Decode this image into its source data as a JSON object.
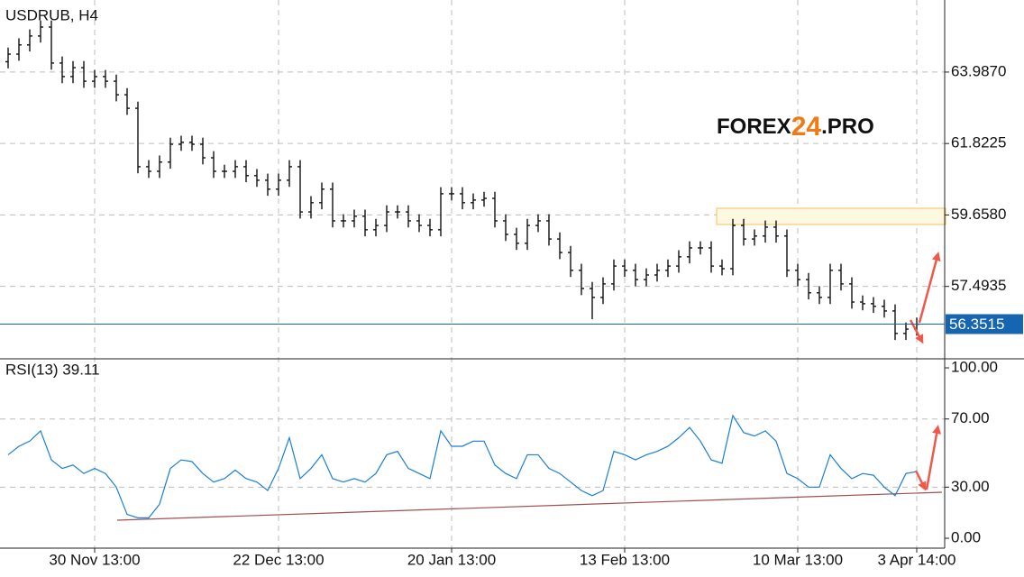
{
  "chart_data": [
    {
      "type": "ohlc",
      "title": "USDRUB, H4",
      "watermark": [
        "FOREX",
        "24",
        ".PRO"
      ],
      "color": "#111111",
      "categories": [
        null,
        null,
        null,
        null,
        null,
        null,
        null,
        null,
        "30 Nov 13:00",
        null,
        null,
        null,
        null,
        null,
        null,
        null,
        null,
        null,
        null,
        null,
        null,
        null,
        null,
        null,
        null,
        "22 Dec 13:00",
        null,
        null,
        null,
        null,
        null,
        null,
        null,
        null,
        null,
        null,
        null,
        null,
        null,
        null,
        null,
        "20 Jan 13:00",
        null,
        null,
        null,
        null,
        null,
        null,
        null,
        null,
        null,
        null,
        null,
        null,
        null,
        null,
        null,
        "13 Feb 13:00",
        null,
        null,
        null,
        null,
        null,
        null,
        null,
        null,
        null,
        null,
        null,
        null,
        null,
        null,
        null,
        "10 Mar 13:00",
        null,
        null,
        null,
        null,
        null,
        null,
        null,
        null,
        null,
        null,
        "3 Apr 14:00"
      ],
      "open": [
        64.3,
        64.53,
        64.81,
        65.08,
        65.35,
        64.26,
        63.85,
        64.12,
        63.71,
        63.85,
        63.71,
        63.3,
        62.89,
        61.12,
        60.98,
        61.26,
        61.8,
        61.86,
        61.8,
        61.39,
        60.98,
        60.98,
        61.12,
        60.85,
        60.71,
        60.44,
        60.71,
        61.12,
        59.75,
        60.03,
        60.44,
        59.48,
        59.48,
        59.62,
        59.21,
        59.34,
        59.75,
        59.75,
        59.48,
        59.34,
        59.21,
        60.3,
        60.3,
        60.03,
        60.11,
        60.16,
        59.48,
        59.07,
        58.8,
        59.34,
        59.48,
        58.93,
        58.52,
        57.98,
        57.43,
        57.16,
        57.57,
        58.11,
        57.98,
        57.7,
        57.84,
        57.98,
        58.11,
        58.39,
        58.66,
        58.66,
        58.11,
        58.03,
        59.34,
        58.93,
        59.02,
        59.29,
        59.02,
        57.98,
        57.7,
        57.3,
        57.16,
        57.98,
        57.57,
        57.02,
        56.97,
        56.89,
        56.75,
        56.07,
        56.2
      ],
      "high": [
        64.73,
        65.01,
        65.28,
        65.55,
        65.55,
        64.46,
        64.32,
        64.32,
        64.05,
        64.05,
        63.91,
        63.5,
        63.09,
        61.32,
        61.46,
        62.0,
        62.06,
        62.06,
        62.0,
        61.59,
        61.18,
        61.32,
        61.32,
        61.05,
        60.91,
        60.91,
        61.32,
        61.32,
        60.23,
        60.64,
        60.64,
        59.68,
        59.82,
        59.82,
        59.54,
        59.95,
        59.95,
        59.95,
        59.68,
        59.54,
        60.5,
        60.5,
        60.5,
        60.31,
        60.36,
        60.36,
        59.68,
        59.27,
        59.54,
        59.68,
        59.68,
        59.13,
        58.72,
        58.18,
        57.63,
        57.77,
        58.31,
        58.31,
        58.18,
        58.04,
        58.18,
        58.31,
        58.59,
        58.86,
        58.86,
        58.86,
        58.31,
        59.54,
        59.54,
        59.22,
        59.49,
        59.49,
        59.22,
        58.18,
        57.9,
        57.5,
        58.18,
        58.18,
        57.77,
        57.22,
        57.17,
        57.09,
        56.95,
        56.4,
        56.55
      ],
      "low": [
        64.1,
        64.33,
        64.61,
        64.88,
        64.06,
        63.65,
        63.65,
        63.51,
        63.51,
        63.51,
        63.1,
        62.69,
        60.92,
        60.78,
        60.78,
        61.06,
        61.6,
        61.6,
        61.19,
        60.78,
        60.78,
        60.78,
        60.65,
        60.51,
        60.24,
        60.24,
        60.51,
        59.55,
        59.55,
        59.83,
        59.28,
        59.28,
        59.28,
        59.01,
        59.01,
        59.14,
        59.55,
        59.28,
        59.14,
        59.01,
        59.01,
        60.1,
        59.83,
        59.83,
        59.91,
        59.28,
        58.87,
        58.6,
        58.6,
        59.14,
        58.73,
        58.32,
        57.78,
        57.23,
        56.5,
        56.96,
        57.37,
        57.78,
        57.5,
        57.5,
        57.64,
        57.78,
        57.91,
        58.19,
        58.46,
        57.91,
        57.83,
        57.83,
        58.73,
        58.73,
        58.82,
        58.82,
        57.78,
        57.5,
        57.1,
        56.96,
        56.96,
        57.37,
        56.82,
        56.77,
        56.69,
        56.55,
        55.87,
        55.87,
        56.0
      ],
      "close": [
        64.53,
        64.81,
        65.08,
        65.35,
        64.26,
        63.85,
        64.12,
        63.71,
        63.85,
        63.71,
        63.3,
        62.89,
        61.12,
        60.98,
        61.26,
        61.8,
        61.86,
        61.8,
        61.39,
        60.98,
        60.98,
        61.12,
        60.85,
        60.71,
        60.44,
        60.71,
        61.12,
        59.75,
        60.03,
        60.44,
        59.48,
        59.48,
        59.62,
        59.21,
        59.34,
        59.75,
        59.75,
        59.48,
        59.34,
        59.21,
        60.3,
        60.3,
        60.03,
        60.11,
        60.16,
        59.48,
        59.07,
        58.8,
        59.34,
        59.48,
        58.93,
        58.52,
        57.98,
        57.43,
        57.16,
        57.57,
        58.11,
        57.98,
        57.7,
        57.84,
        57.98,
        58.11,
        58.39,
        58.66,
        58.66,
        58.11,
        58.03,
        59.34,
        58.93,
        59.02,
        59.29,
        59.02,
        57.98,
        57.7,
        57.3,
        57.16,
        57.98,
        57.57,
        57.02,
        56.97,
        56.89,
        56.75,
        56.07,
        56.2,
        56.35
      ],
      "last_price": 56.3515,
      "ylim": [
        55.3,
        66.17
      ],
      "yticks": [
        {
          "value": 63.987,
          "label": "63.9870"
        },
        61.8225,
        {
          "value": 59.658,
          "label": "59.6580"
        },
        57.4935
      ],
      "grid": true
    },
    {
      "type": "line",
      "title": "RSI(13) 39.11",
      "color": "#1a7fd6",
      "values": [
        49,
        54,
        57,
        63,
        46,
        41,
        43,
        38,
        41,
        38,
        30,
        14,
        12,
        12,
        20,
        41,
        46,
        45,
        38,
        33,
        35,
        40,
        35,
        33,
        28,
        41,
        59,
        35,
        41,
        49,
        35,
        33,
        35,
        33,
        38,
        49,
        51,
        41,
        38,
        35,
        63,
        54,
        54,
        57,
        57,
        43,
        38,
        35,
        49,
        49,
        41,
        38,
        33,
        28,
        25,
        28,
        51,
        49,
        46,
        49,
        51,
        54,
        59,
        65,
        57,
        46,
        44,
        72,
        62,
        60,
        63,
        57,
        38,
        35,
        30,
        30,
        49,
        41,
        35,
        38,
        37,
        30,
        25,
        38,
        39.11
      ],
      "ylim": [
        -5.8,
        105.3
      ],
      "yticks": [
        {
          "value": 100,
          "label": "100.00"
        },
        {
          "value": 70,
          "label": "70.00"
        },
        {
          "value": 30,
          "label": "30.00"
        },
        {
          "value": 0,
          "label": "0.00"
        }
      ],
      "grid": true
    }
  ]
}
